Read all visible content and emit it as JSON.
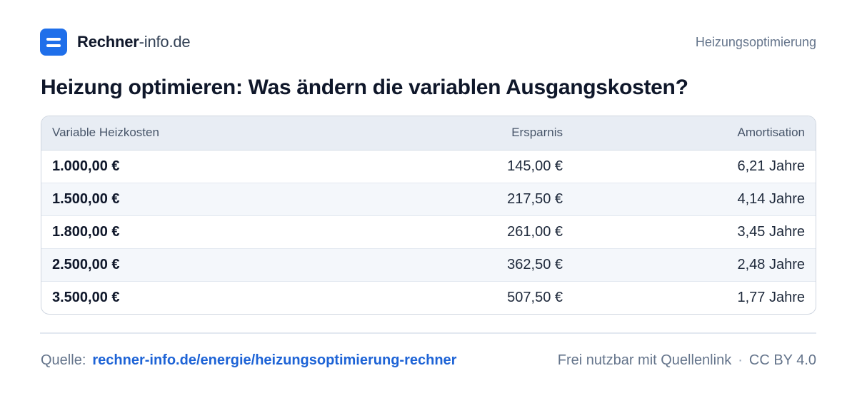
{
  "brand": {
    "name_bold": "Rechner",
    "name_light": "-info.de"
  },
  "header": {
    "section": "Heizungsoptimierung"
  },
  "title": "Heizung optimieren: Was ändern die variablen Ausgangskosten?",
  "table": {
    "columns": [
      "Variable Heizkosten",
      "Ersparnis",
      "Amortisation"
    ],
    "rows": [
      [
        "1.000,00 €",
        "145,00 €",
        "6,21 Jahre"
      ],
      [
        "1.500,00 €",
        "217,50 €",
        "4,14 Jahre"
      ],
      [
        "1.800,00 €",
        "261,00 €",
        "3,45 Jahre"
      ],
      [
        "2.500,00 €",
        "362,50 €",
        "2,48 Jahre"
      ],
      [
        "3.500,00 €",
        "507,50 €",
        "1,77 Jahre"
      ]
    ]
  },
  "footer": {
    "source_label": "Quelle:",
    "source_link": "rechner-info.de/energie/heizungsoptimierung-rechner",
    "usage": "Frei nutzbar mit Quellenlink",
    "separator": "·",
    "license": "CC BY 4.0"
  },
  "colors": {
    "accent": "#1f6fea",
    "link": "#1d63d6",
    "header_bg": "#e8edf4"
  }
}
